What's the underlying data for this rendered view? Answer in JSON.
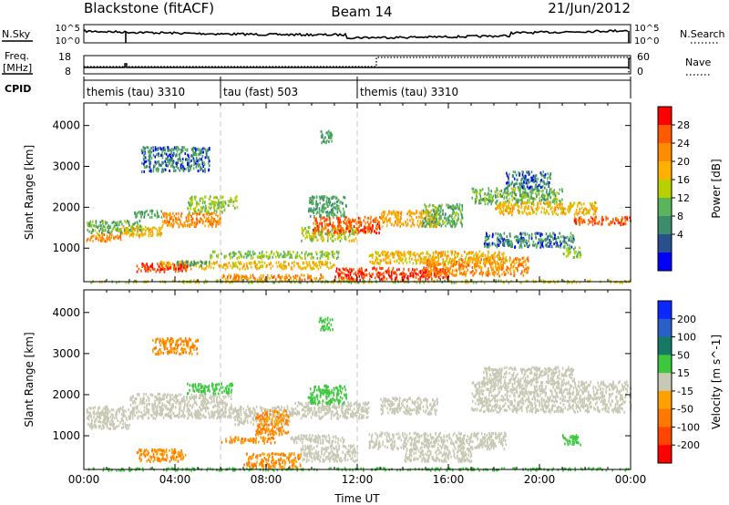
{
  "header": {
    "radar": "Blackstone (fitACF)",
    "beam": "Beam 14",
    "date": "21/Jun/2012"
  },
  "top_panels": {
    "noise": {
      "left_label": "N.Sky",
      "right_label": "N.Search",
      "left_ticks": [
        "10^5",
        "10^0"
      ],
      "right_ticks": [
        "10^5",
        "10^0"
      ]
    },
    "freq": {
      "left_label_1": "Freq.",
      "left_label_2": "[MHz]",
      "right_label": "Nave",
      "left_ticks": [
        "18",
        "8"
      ],
      "right_ticks": [
        "60",
        "0"
      ]
    },
    "cpid": {
      "label": "CPID",
      "segments": [
        {
          "text": "themis (tau) 3310",
          "start_h": 0,
          "end_h": 6
        },
        {
          "text": "tau (fast) 503",
          "start_h": 6,
          "end_h": 12
        },
        {
          "text": "themis (tau) 3310",
          "start_h": 12,
          "end_h": 24
        }
      ]
    }
  },
  "chart_data": [
    {
      "type": "heatmap",
      "name": "power",
      "ylabel": "Slant Range [km]",
      "xlabel": "",
      "xlim": [
        0,
        24
      ],
      "ylim": [
        180,
        4550
      ],
      "yticks": [
        "1000",
        "2000",
        "3000",
        "4000"
      ],
      "colorbar": {
        "label": "Power [dB]",
        "ticks": [
          "28",
          "24",
          "20",
          "16",
          "12",
          "8",
          "4"
        ],
        "colors": [
          "#ff0000",
          "#ff5a00",
          "#ff8c00",
          "#ffb000",
          "#b8d000",
          "#5ab45a",
          "#3c8c6e",
          "#28508c",
          "#0000ff"
        ]
      },
      "regions": [
        {
          "x0": 0.1,
          "x1": 1.6,
          "y0": 1200,
          "y1": 1380,
          "v": 22
        },
        {
          "x0": 0.1,
          "x1": 2.5,
          "y0": 1400,
          "y1": 1700,
          "v": 10
        },
        {
          "x0": 1.6,
          "x1": 3.4,
          "y0": 1300,
          "y1": 1550,
          "v": 18
        },
        {
          "x0": 3.4,
          "x1": 6.0,
          "y0": 1550,
          "y1": 1900,
          "v": 22
        },
        {
          "x0": 4.5,
          "x1": 6.2,
          "y0": 1900,
          "y1": 2300,
          "v": 12
        },
        {
          "x0": 2.2,
          "x1": 3.4,
          "y0": 1780,
          "y1": 1950,
          "v": 8
        },
        {
          "x0": 2.5,
          "x1": 5.5,
          "y0": 2900,
          "y1": 3500,
          "v": 6
        },
        {
          "x0": 6.3,
          "x1": 6.7,
          "y0": 2000,
          "y1": 2300,
          "v": 12
        },
        {
          "x0": 5.5,
          "x1": 11.2,
          "y0": 780,
          "y1": 950,
          "v": 12
        },
        {
          "x0": 3.3,
          "x1": 11.0,
          "y0": 520,
          "y1": 700,
          "v": 18
        },
        {
          "x0": 4.0,
          "x1": 5.5,
          "y0": 600,
          "y1": 720,
          "v": 8
        },
        {
          "x0": 6.0,
          "x1": 10.5,
          "y0": 240,
          "y1": 380,
          "v": 22
        },
        {
          "x0": 2.3,
          "x1": 4.5,
          "y0": 450,
          "y1": 650,
          "v": 28
        },
        {
          "x0": 9.5,
          "x1": 12.0,
          "y0": 1200,
          "y1": 1550,
          "v": 14
        },
        {
          "x0": 10.0,
          "x1": 13.0,
          "y0": 1400,
          "y1": 1800,
          "v": 26
        },
        {
          "x0": 9.8,
          "x1": 11.5,
          "y0": 1800,
          "y1": 2300,
          "v": 8
        },
        {
          "x0": 10.3,
          "x1": 10.9,
          "y0": 3600,
          "y1": 3900,
          "v": 8
        },
        {
          "x0": 13.0,
          "x1": 15.5,
          "y0": 1550,
          "y1": 1950,
          "v": 20
        },
        {
          "x0": 11.0,
          "x1": 16.0,
          "y0": 250,
          "y1": 550,
          "v": 28
        },
        {
          "x0": 15.0,
          "x1": 19.5,
          "y0": 350,
          "y1": 800,
          "v": 22
        },
        {
          "x0": 12.5,
          "x1": 18.5,
          "y0": 650,
          "y1": 950,
          "v": 18
        },
        {
          "x0": 14.8,
          "x1": 16.6,
          "y0": 1550,
          "y1": 2100,
          "v": 10
        },
        {
          "x0": 17.0,
          "x1": 21.0,
          "y0": 2100,
          "y1": 2500,
          "v": 10
        },
        {
          "x0": 18.0,
          "x1": 22.5,
          "y0": 1850,
          "y1": 2150,
          "v": 18
        },
        {
          "x0": 21.5,
          "x1": 24.0,
          "y0": 1600,
          "y1": 1800,
          "v": 26
        },
        {
          "x0": 17.5,
          "x1": 21.5,
          "y0": 1050,
          "y1": 1400,
          "v": 6
        },
        {
          "x0": 18.5,
          "x1": 20.5,
          "y0": 2500,
          "y1": 2900,
          "v": 6
        },
        {
          "x0": 21.0,
          "x1": 21.8,
          "y0": 800,
          "y1": 1050,
          "v": 12
        },
        {
          "x0": 0.1,
          "x1": 24.0,
          "y0": 185,
          "y1": 240,
          "v": 14
        }
      ]
    },
    {
      "type": "heatmap",
      "name": "velocity",
      "ylabel": "Slant Range [km]",
      "xlabel": "Time UT",
      "xlim": [
        0,
        24
      ],
      "ylim": [
        180,
        4550
      ],
      "yticks": [
        "1000",
        "2000",
        "3000",
        "4000"
      ],
      "xticks": [
        "00:00",
        "04:00",
        "08:00",
        "12:00",
        "16:00",
        "20:00",
        "00:00"
      ],
      "colorbar": {
        "label": "Velocity [m s^-1]",
        "ticks": [
          "200",
          "100",
          "50",
          "15",
          "-15",
          "-50",
          "-100",
          "-200"
        ],
        "colors": [
          "#0a28ff",
          "#2860c8",
          "#147a64",
          "#3cc83c",
          "#c8c8b4",
          "#ffa000",
          "#ff7800",
          "#ff4600",
          "#ff0000"
        ]
      },
      "regions": [
        {
          "x0": 0.1,
          "x1": 2.0,
          "y0": 1200,
          "y1": 1750,
          "v": 0
        },
        {
          "x0": 2.0,
          "x1": 6.5,
          "y0": 1450,
          "y1": 2050,
          "v": 0
        },
        {
          "x0": 6.5,
          "x1": 9.0,
          "y0": 1300,
          "y1": 1750,
          "v": 0
        },
        {
          "x0": 9.0,
          "x1": 12.5,
          "y0": 1450,
          "y1": 1850,
          "v": 0
        },
        {
          "x0": 13.0,
          "x1": 15.5,
          "y0": 1550,
          "y1": 1950,
          "v": 0
        },
        {
          "x0": 17.0,
          "x1": 24.0,
          "y0": 1600,
          "y1": 2350,
          "v": 0
        },
        {
          "x0": 12.5,
          "x1": 18.5,
          "y0": 700,
          "y1": 1100,
          "v": 0
        },
        {
          "x0": 14.0,
          "x1": 17.0,
          "y0": 400,
          "y1": 700,
          "v": 0
        },
        {
          "x0": 9.0,
          "x1": 11.5,
          "y0": 850,
          "y1": 1050,
          "v": 0
        },
        {
          "x0": 6.0,
          "x1": 8.5,
          "y0": 850,
          "y1": 1000,
          "v": -50
        },
        {
          "x0": 7.5,
          "x1": 9.0,
          "y0": 1050,
          "y1": 1650,
          "v": -50
        },
        {
          "x0": 2.3,
          "x1": 4.5,
          "y0": 400,
          "y1": 700,
          "v": -50
        },
        {
          "x0": 7.0,
          "x1": 9.5,
          "y0": 250,
          "y1": 600,
          "v": -50
        },
        {
          "x0": 9.5,
          "x1": 12.0,
          "y0": 400,
          "y1": 800,
          "v": 0
        },
        {
          "x0": 9.8,
          "x1": 11.5,
          "y0": 1800,
          "y1": 2250,
          "v": 20
        },
        {
          "x0": 3.0,
          "x1": 5.0,
          "y0": 3000,
          "y1": 3400,
          "v": -50
        },
        {
          "x0": 4.5,
          "x1": 6.5,
          "y0": 2050,
          "y1": 2300,
          "v": 20
        },
        {
          "x0": 10.3,
          "x1": 10.9,
          "y0": 3600,
          "y1": 3900,
          "v": 20
        },
        {
          "x0": 21.0,
          "x1": 21.8,
          "y0": 800,
          "y1": 1050,
          "v": 20
        },
        {
          "x0": 17.5,
          "x1": 21.5,
          "y0": 2300,
          "y1": 2700,
          "v": 0
        },
        {
          "x0": 0.1,
          "x1": 24.0,
          "y0": 185,
          "y1": 240,
          "v": 20
        }
      ]
    }
  ],
  "colors": {
    "axis": "#000000",
    "divider": "#c8c8c8"
  }
}
